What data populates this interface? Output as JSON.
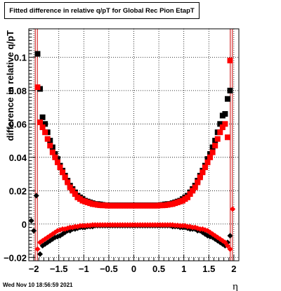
{
  "chart_data": {
    "type": "scatter",
    "title": "Fitted difference in relative q/pT for Global Rec Pion EtapT",
    "xlabel": "η",
    "ylabel": "difference in relative q/pT",
    "xlim": [
      -2.1,
      2.1
    ],
    "ylim": [
      -0.022,
      0.117
    ],
    "xticks": [
      -2,
      -1.5,
      -1,
      -0.5,
      0,
      0.5,
      1,
      1.5,
      2
    ],
    "xtick_labels": [
      "−2",
      "−1.5",
      "−1",
      "−0.5",
      "0",
      "0.5",
      "1",
      "1.5",
      "2"
    ],
    "yticks": [
      -0.02,
      0,
      0.02,
      0.04,
      0.06,
      0.08,
      0.1
    ],
    "ytick_labels": [
      "−0.02",
      "0",
      "0.02",
      "0.04",
      "0.06",
      "0.08",
      "0.1"
    ],
    "grid": true,
    "vlines": [
      -1.95,
      1.95
    ],
    "series": [
      {
        "color": "#000000",
        "marker": "square",
        "x": [
          -1.925,
          -1.875,
          -1.825,
          -1.775,
          -1.725,
          -1.675,
          -1.625,
          -1.575,
          -1.525,
          -1.475,
          -1.425,
          -1.375,
          -1.325,
          -1.275,
          -1.225,
          -1.175,
          -1.125,
          -1.075,
          -1.025,
          -0.975,
          -0.925,
          -0.875,
          -0.825,
          -0.775,
          -0.725,
          -0.675,
          -0.625,
          -0.575,
          -0.525,
          -0.475,
          -0.425,
          -0.375,
          -0.325,
          -0.275,
          -0.225,
          -0.175,
          -0.125,
          -0.075,
          -0.025,
          0.025,
          0.075,
          0.125,
          0.175,
          0.225,
          0.275,
          0.325,
          0.375,
          0.425,
          0.475,
          0.525,
          0.575,
          0.625,
          0.675,
          0.725,
          0.775,
          0.825,
          0.875,
          0.925,
          0.975,
          1.025,
          1.075,
          1.125,
          1.175,
          1.225,
          1.275,
          1.325,
          1.375,
          1.425,
          1.475,
          1.525,
          1.575,
          1.625,
          1.675,
          1.725,
          1.775,
          1.825,
          1.875,
          1.925
        ],
        "y": [
          0.102,
          0.081,
          0.064,
          0.06,
          0.055,
          0.05,
          0.046,
          0.042,
          0.039,
          0.035,
          0.032,
          0.029,
          0.026,
          0.023,
          0.021,
          0.019,
          0.017,
          0.016,
          0.015,
          0.014,
          0.0135,
          0.013,
          0.0125,
          0.012,
          0.012,
          0.0118,
          0.0115,
          0.0113,
          0.0112,
          0.0112,
          0.0112,
          0.0112,
          0.0112,
          0.0112,
          0.0112,
          0.0112,
          0.0112,
          0.0112,
          0.0112,
          0.0112,
          0.0112,
          0.0112,
          0.0112,
          0.0112,
          0.0112,
          0.0112,
          0.0112,
          0.0112,
          0.0112,
          0.0113,
          0.0115,
          0.0118,
          0.012,
          0.012,
          0.0125,
          0.013,
          0.0135,
          0.014,
          0.015,
          0.016,
          0.017,
          0.019,
          0.021,
          0.023,
          0.026,
          0.029,
          0.032,
          0.035,
          0.039,
          0.042,
          0.046,
          0.05,
          0.055,
          0.06,
          0.065,
          0.066,
          0.075,
          0.08
        ]
      },
      {
        "color": "#ff0000",
        "marker": "square",
        "x": [
          -1.925,
          -1.875,
          -1.825,
          -1.775,
          -1.725,
          -1.675,
          -1.625,
          -1.575,
          -1.525,
          -1.475,
          -1.425,
          -1.375,
          -1.325,
          -1.275,
          -1.225,
          -1.175,
          -1.125,
          -1.075,
          -1.025,
          -0.975,
          -0.925,
          -0.875,
          -0.825,
          -0.775,
          -0.725,
          -0.675,
          -0.625,
          -0.575,
          -0.525,
          -0.475,
          -0.425,
          -0.375,
          -0.325,
          -0.275,
          -0.225,
          -0.175,
          -0.125,
          -0.075,
          -0.025,
          0.025,
          0.075,
          0.125,
          0.175,
          0.225,
          0.275,
          0.325,
          0.375,
          0.425,
          0.475,
          0.525,
          0.575,
          0.625,
          0.675,
          0.725,
          0.775,
          0.825,
          0.875,
          0.925,
          0.975,
          1.025,
          1.075,
          1.125,
          1.175,
          1.225,
          1.275,
          1.325,
          1.375,
          1.425,
          1.475,
          1.525,
          1.575,
          1.625,
          1.675,
          1.725,
          1.775,
          1.825,
          1.875,
          1.925
        ],
        "y": [
          0.082,
          0.061,
          0.058,
          0.055,
          0.051,
          0.047,
          0.043,
          0.04,
          0.037,
          0.034,
          0.031,
          0.028,
          0.025,
          0.022,
          0.02,
          0.018,
          0.016,
          0.015,
          0.014,
          0.0135,
          0.013,
          0.0125,
          0.012,
          0.0118,
          0.0115,
          0.0113,
          0.0112,
          0.0112,
          0.011,
          0.011,
          0.011,
          0.011,
          0.011,
          0.011,
          0.011,
          0.011,
          0.011,
          0.011,
          0.011,
          0.011,
          0.011,
          0.011,
          0.011,
          0.011,
          0.011,
          0.011,
          0.011,
          0.011,
          0.011,
          0.0112,
          0.0112,
          0.0113,
          0.0115,
          0.0118,
          0.012,
          0.0125,
          0.013,
          0.0135,
          0.014,
          0.015,
          0.016,
          0.018,
          0.02,
          0.022,
          0.025,
          0.028,
          0.031,
          0.034,
          0.037,
          0.04,
          0.043,
          0.047,
          0.051,
          0.055,
          0.058,
          0.06,
          0.052,
          0.098
        ]
      },
      {
        "color": "#000000",
        "marker": "diamond",
        "x": [
          -2.05,
          -2.0,
          -1.95,
          -1.875,
          -1.825,
          -1.775,
          -1.725,
          -1.675,
          -1.625,
          -1.575,
          -1.525,
          -1.475,
          -1.425,
          -1.375,
          -1.325,
          -1.275,
          -1.225,
          -1.175,
          -1.125,
          -1.075,
          -1.025,
          -0.975,
          -0.925,
          -0.875,
          -0.825,
          -0.775,
          -0.725,
          -0.675,
          -0.625,
          -0.575,
          -0.525,
          -0.475,
          -0.425,
          -0.375,
          -0.325,
          -0.275,
          -0.225,
          -0.175,
          -0.125,
          -0.075,
          -0.025,
          0.025,
          0.075,
          0.125,
          0.175,
          0.225,
          0.275,
          0.325,
          0.375,
          0.425,
          0.475,
          0.525,
          0.575,
          0.625,
          0.675,
          0.725,
          0.775,
          0.825,
          0.875,
          0.925,
          0.975,
          1.025,
          1.075,
          1.125,
          1.175,
          1.225,
          1.275,
          1.325,
          1.375,
          1.425,
          1.475,
          1.525,
          1.575,
          1.625,
          1.675,
          1.725,
          1.775,
          1.825,
          1.875,
          1.925
        ],
        "y": [
          0.002,
          -0.004,
          0.017,
          -0.018,
          -0.013,
          -0.012,
          -0.011,
          -0.01,
          -0.009,
          -0.008,
          -0.0075,
          -0.007,
          -0.006,
          -0.005,
          -0.004,
          -0.004,
          -0.003,
          -0.003,
          -0.0025,
          -0.002,
          -0.002,
          -0.002,
          -0.0015,
          -0.0015,
          -0.0015,
          -0.001,
          -0.001,
          -0.001,
          -0.001,
          -0.001,
          -0.001,
          -0.001,
          -0.001,
          -0.001,
          -0.001,
          -0.001,
          -0.001,
          -0.001,
          -0.001,
          -0.001,
          -0.001,
          -0.001,
          -0.001,
          -0.001,
          -0.001,
          -0.001,
          -0.001,
          -0.001,
          -0.001,
          -0.001,
          -0.001,
          -0.001,
          -0.001,
          -0.001,
          -0.001,
          -0.001,
          -0.0015,
          -0.0015,
          -0.0015,
          -0.002,
          -0.002,
          -0.002,
          -0.0025,
          -0.003,
          -0.003,
          -0.003,
          -0.004,
          -0.004,
          -0.005,
          -0.006,
          -0.007,
          -0.0075,
          -0.008,
          -0.009,
          -0.01,
          -0.011,
          -0.012,
          -0.013,
          -0.011,
          -0.007
        ]
      },
      {
        "color": "#ff0000",
        "marker": "diamond",
        "x": [
          -1.925,
          -1.875,
          -1.825,
          -1.775,
          -1.725,
          -1.675,
          -1.625,
          -1.575,
          -1.525,
          -1.475,
          -1.425,
          -1.375,
          -1.325,
          -1.275,
          -1.225,
          -1.175,
          -1.125,
          -1.075,
          -1.025,
          -0.975,
          -0.925,
          -0.875,
          -0.825,
          -0.775,
          -0.725,
          -0.675,
          -0.625,
          -0.575,
          -0.525,
          -0.475,
          -0.425,
          -0.375,
          -0.325,
          -0.275,
          -0.225,
          -0.175,
          -0.125,
          -0.075,
          -0.025,
          0.025,
          0.075,
          0.125,
          0.175,
          0.225,
          0.275,
          0.325,
          0.375,
          0.425,
          0.475,
          0.525,
          0.575,
          0.625,
          0.675,
          0.725,
          0.775,
          0.825,
          0.875,
          0.925,
          0.975,
          1.025,
          1.075,
          1.125,
          1.175,
          1.225,
          1.275,
          1.325,
          1.375,
          1.425,
          1.475,
          1.525,
          1.575,
          1.625,
          1.675,
          1.725,
          1.775,
          1.825,
          1.875,
          1.925,
          1.975
        ],
        "y": [
          -0.015,
          -0.011,
          -0.01,
          -0.009,
          -0.008,
          -0.007,
          -0.006,
          -0.005,
          -0.004,
          -0.0035,
          -0.003,
          -0.003,
          -0.0025,
          -0.002,
          -0.002,
          -0.0015,
          -0.0015,
          -0.001,
          -0.001,
          -0.001,
          -0.0008,
          -0.0008,
          -0.0005,
          -0.0005,
          -0.0005,
          -0.0005,
          -0.0005,
          -0.0005,
          -0.0005,
          -0.0005,
          -0.0005,
          -0.0005,
          -0.0005,
          -0.0005,
          -0.0005,
          -0.0005,
          -0.0005,
          -0.0005,
          -0.0005,
          -0.0005,
          -0.0005,
          -0.0005,
          -0.0005,
          -0.0005,
          -0.0005,
          -0.0005,
          -0.0005,
          -0.0005,
          -0.0005,
          -0.0005,
          -0.0005,
          -0.0005,
          -0.0005,
          -0.0005,
          -0.0005,
          -0.0008,
          -0.0008,
          -0.001,
          -0.001,
          -0.001,
          -0.0015,
          -0.0015,
          -0.002,
          -0.002,
          -0.0025,
          -0.003,
          -0.003,
          -0.0035,
          -0.004,
          -0.005,
          -0.006,
          -0.007,
          -0.008,
          -0.009,
          -0.01,
          -0.011,
          -0.013,
          -0.015,
          0.009
        ]
      }
    ]
  },
  "footer": {
    "timestamp": "Wed Nov 10 18:56:59 2021"
  }
}
